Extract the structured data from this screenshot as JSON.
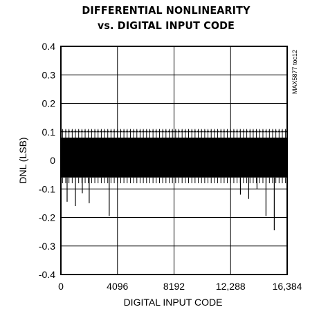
{
  "chart_data": {
    "type": "line",
    "title": "DIFFERENTIAL NONLINEARITY",
    "subtitle": "vs. DIGITAL INPUT CODE",
    "xlabel": "DIGITAL INPUT CODE",
    "ylabel": "DNL (LSB)",
    "xlim": [
      0,
      16384
    ],
    "ylim": [
      -0.4,
      0.4
    ],
    "x_ticks": [
      0,
      4096,
      8192,
      12288,
      16384
    ],
    "x_tick_labels": [
      "0",
      "4096",
      "8192",
      "12,288",
      "16,384"
    ],
    "y_ticks": [
      -0.4,
      -0.3,
      -0.2,
      -0.1,
      0,
      0.1,
      0.2,
      0.3,
      0.4
    ],
    "y_tick_labels": [
      "-0.4",
      "-0.3",
      "-0.2",
      "-0.1",
      "0",
      "0.1",
      "0.2",
      "0.3",
      "0.4"
    ],
    "grid": true,
    "band": {
      "upper": 0.08,
      "lower": -0.06
    },
    "upper_spike_value": 0.11,
    "upper_spike_count": 70,
    "lower_spike_base": -0.08,
    "large_negative_spikes": [
      {
        "x": 450,
        "y": -0.145
      },
      {
        "x": 1050,
        "y": -0.16
      },
      {
        "x": 1550,
        "y": -0.115
      },
      {
        "x": 2050,
        "y": -0.15
      },
      {
        "x": 3500,
        "y": -0.195
      },
      {
        "x": 13000,
        "y": -0.12
      },
      {
        "x": 13600,
        "y": -0.135
      },
      {
        "x": 14200,
        "y": -0.1
      },
      {
        "x": 14850,
        "y": -0.195
      },
      {
        "x": 15450,
        "y": -0.245
      }
    ],
    "watermark": "MAX5877 toc12"
  }
}
